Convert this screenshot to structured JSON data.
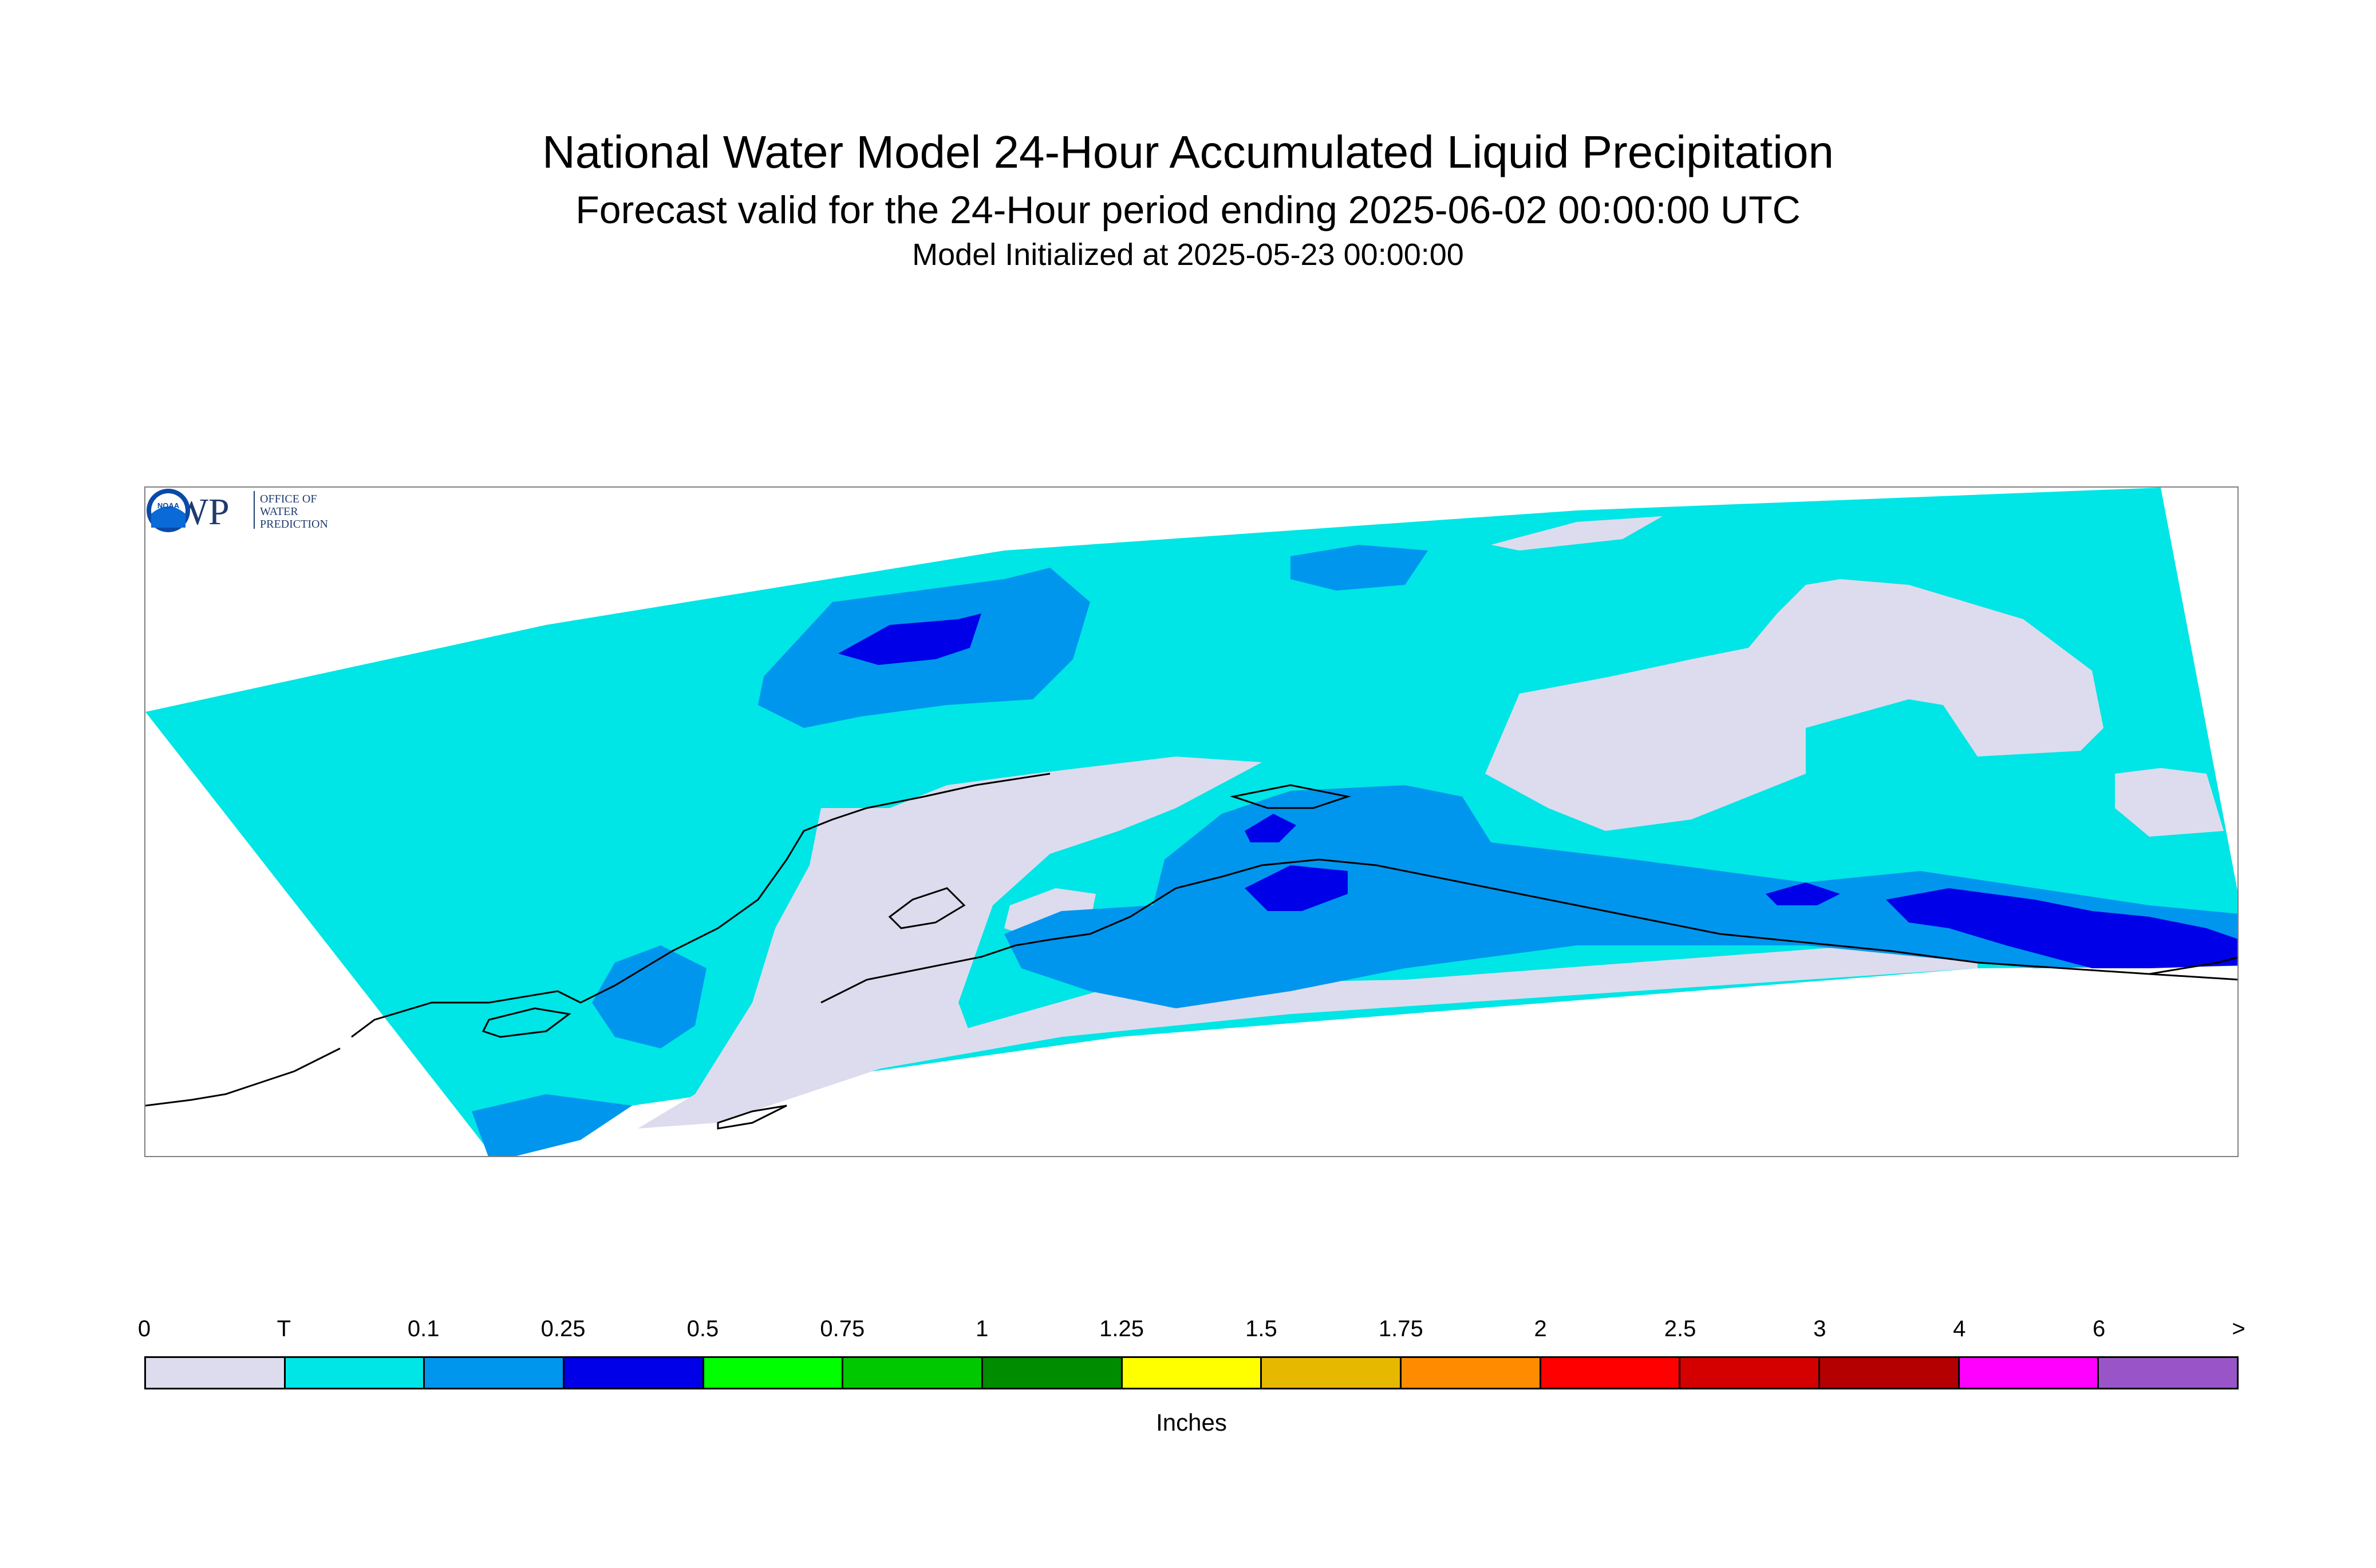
{
  "header": {
    "title": "National Water Model 24-Hour Accumulated Liquid Precipitation",
    "subtitle": "Forecast valid for the 24-Hour period ending 2025-06-02 00:00:00 UTC",
    "init": "Model Initialized at 2025-05-23 00:00:00"
  },
  "logos": {
    "owp": "OWP",
    "owp_text_1": "OFFICE OF",
    "owp_text_2": "WATER",
    "owp_text_3": "PREDICTION",
    "noaa": "NOAA"
  },
  "legend": {
    "unit": "Inches",
    "ticks": [
      "0",
      "T",
      "0.1",
      "0.25",
      "0.5",
      "0.75",
      "1",
      "1.25",
      "1.5",
      "1.75",
      "2",
      "2.5",
      "3",
      "4",
      "6",
      ">"
    ],
    "colors": [
      "#dcdcee",
      "#00e5e5",
      "#0096ee",
      "#0000e8",
      "#00ff00",
      "#00c800",
      "#008c00",
      "#ffff00",
      "#e6b800",
      "#ff8c00",
      "#ff0000",
      "#d40000",
      "#b40000",
      "#ff00ff",
      "#9955c8"
    ]
  },
  "palette": {
    "zero": "#dcdcee",
    "trace": "#00e5e5",
    "tenth": "#0096ee",
    "quarter": "#0000e8",
    "coast": "#000000"
  }
}
